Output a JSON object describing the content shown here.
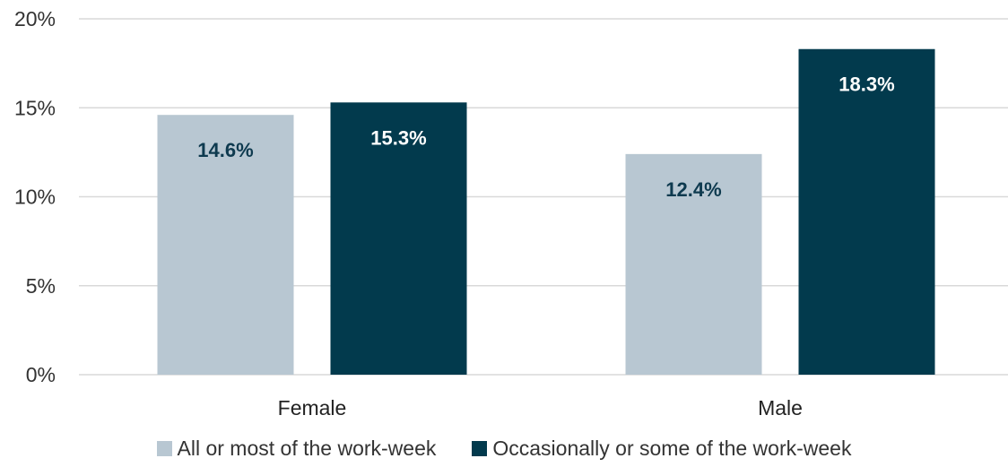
{
  "chart_data": {
    "type": "bar",
    "categories": [
      "Female",
      "Male"
    ],
    "series": [
      {
        "name": "All or most of the work-week",
        "values": [
          14.6,
          12.4
        ],
        "labels": [
          "14.6%",
          "12.4%"
        ],
        "color": "#b8c7d2",
        "label_color": "#0e3a4f"
      },
      {
        "name": "Occasionally or some of the work-week",
        "values": [
          15.3,
          18.3
        ],
        "labels": [
          "15.3%",
          "18.3%"
        ],
        "color": "#023a4d",
        "label_color": "#ffffff"
      }
    ],
    "ylim": [
      0,
      20
    ],
    "yticks": [
      0,
      5,
      10,
      15,
      20
    ],
    "ytick_labels": [
      "0%",
      "5%",
      "10%",
      "15%",
      "20%"
    ],
    "grid": true,
    "legend_position": "bottom",
    "gridline_color": "#d9d9d9"
  }
}
